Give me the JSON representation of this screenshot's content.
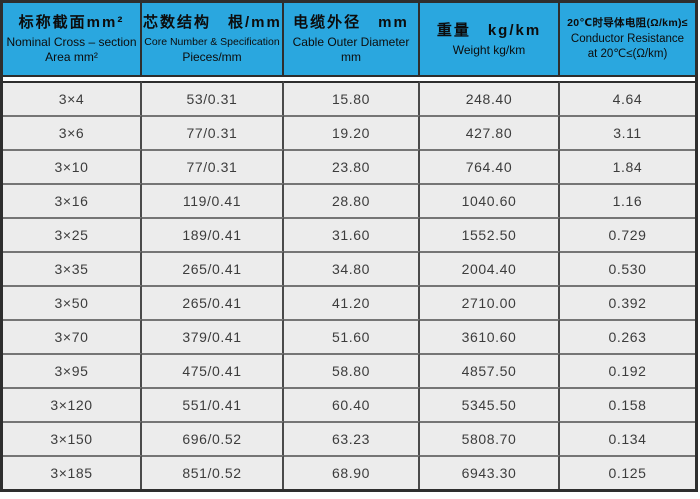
{
  "colors": {
    "header_bg": "#2AA7DF",
    "header_text": "#0c0c0c",
    "row_bg": "#ECECEC",
    "row_text": "#3C3C3C",
    "grid_horizontal": "#757575",
    "grid_vertical": "#4A4A4A",
    "outer_border": "#2E2E2E",
    "page_bg": "#FFFFFF"
  },
  "table": {
    "columns": [
      {
        "id": "nominal-cross-section",
        "lines": [
          "标称截面mm²",
          "Nominal Cross – section",
          "Area mm²"
        ]
      },
      {
        "id": "core-number-specification",
        "lines": [
          "芯数结构　根/mm",
          "Core Number & Specification",
          "Pieces/mm"
        ]
      },
      {
        "id": "cable-outer-diameter",
        "lines": [
          "电缆外径　mm",
          "Cable Outer Diameter",
          "mm"
        ]
      },
      {
        "id": "weight",
        "lines": [
          "重量　kg/km",
          "Weight kg/km"
        ]
      },
      {
        "id": "conductor-resistance",
        "lines": [
          "20℃时导体电阻(Ω/km)≤",
          "Conductor Resistance",
          "at 20℃≤(Ω/km)"
        ]
      }
    ],
    "rows": [
      [
        "3×4",
        "53/0.31",
        "15.80",
        "248.40",
        "4.64"
      ],
      [
        "3×6",
        "77/0.31",
        "19.20",
        "427.80",
        "3.11"
      ],
      [
        "3×10",
        "77/0.31",
        "23.80",
        "764.40",
        "1.84"
      ],
      [
        "3×16",
        "119/0.41",
        "28.80",
        "1040.60",
        "1.16"
      ],
      [
        "3×25",
        "189/0.41",
        "31.60",
        "1552.50",
        "0.729"
      ],
      [
        "3×35",
        "265/0.41",
        "34.80",
        "2004.40",
        "0.530"
      ],
      [
        "3×50",
        "265/0.41",
        "41.20",
        "2710.00",
        "0.392"
      ],
      [
        "3×70",
        "379/0.41",
        "51.60",
        "3610.60",
        "0.263"
      ],
      [
        "3×95",
        "475/0.41",
        "58.80",
        "4857.50",
        "0.192"
      ],
      [
        "3×120",
        "551/0.41",
        "60.40",
        "5345.50",
        "0.158"
      ],
      [
        "3×150",
        "696/0.52",
        "63.23",
        "5808.70",
        "0.134"
      ],
      [
        "3×185",
        "851/0.52",
        "68.90",
        "6943.30",
        "0.125"
      ]
    ]
  }
}
